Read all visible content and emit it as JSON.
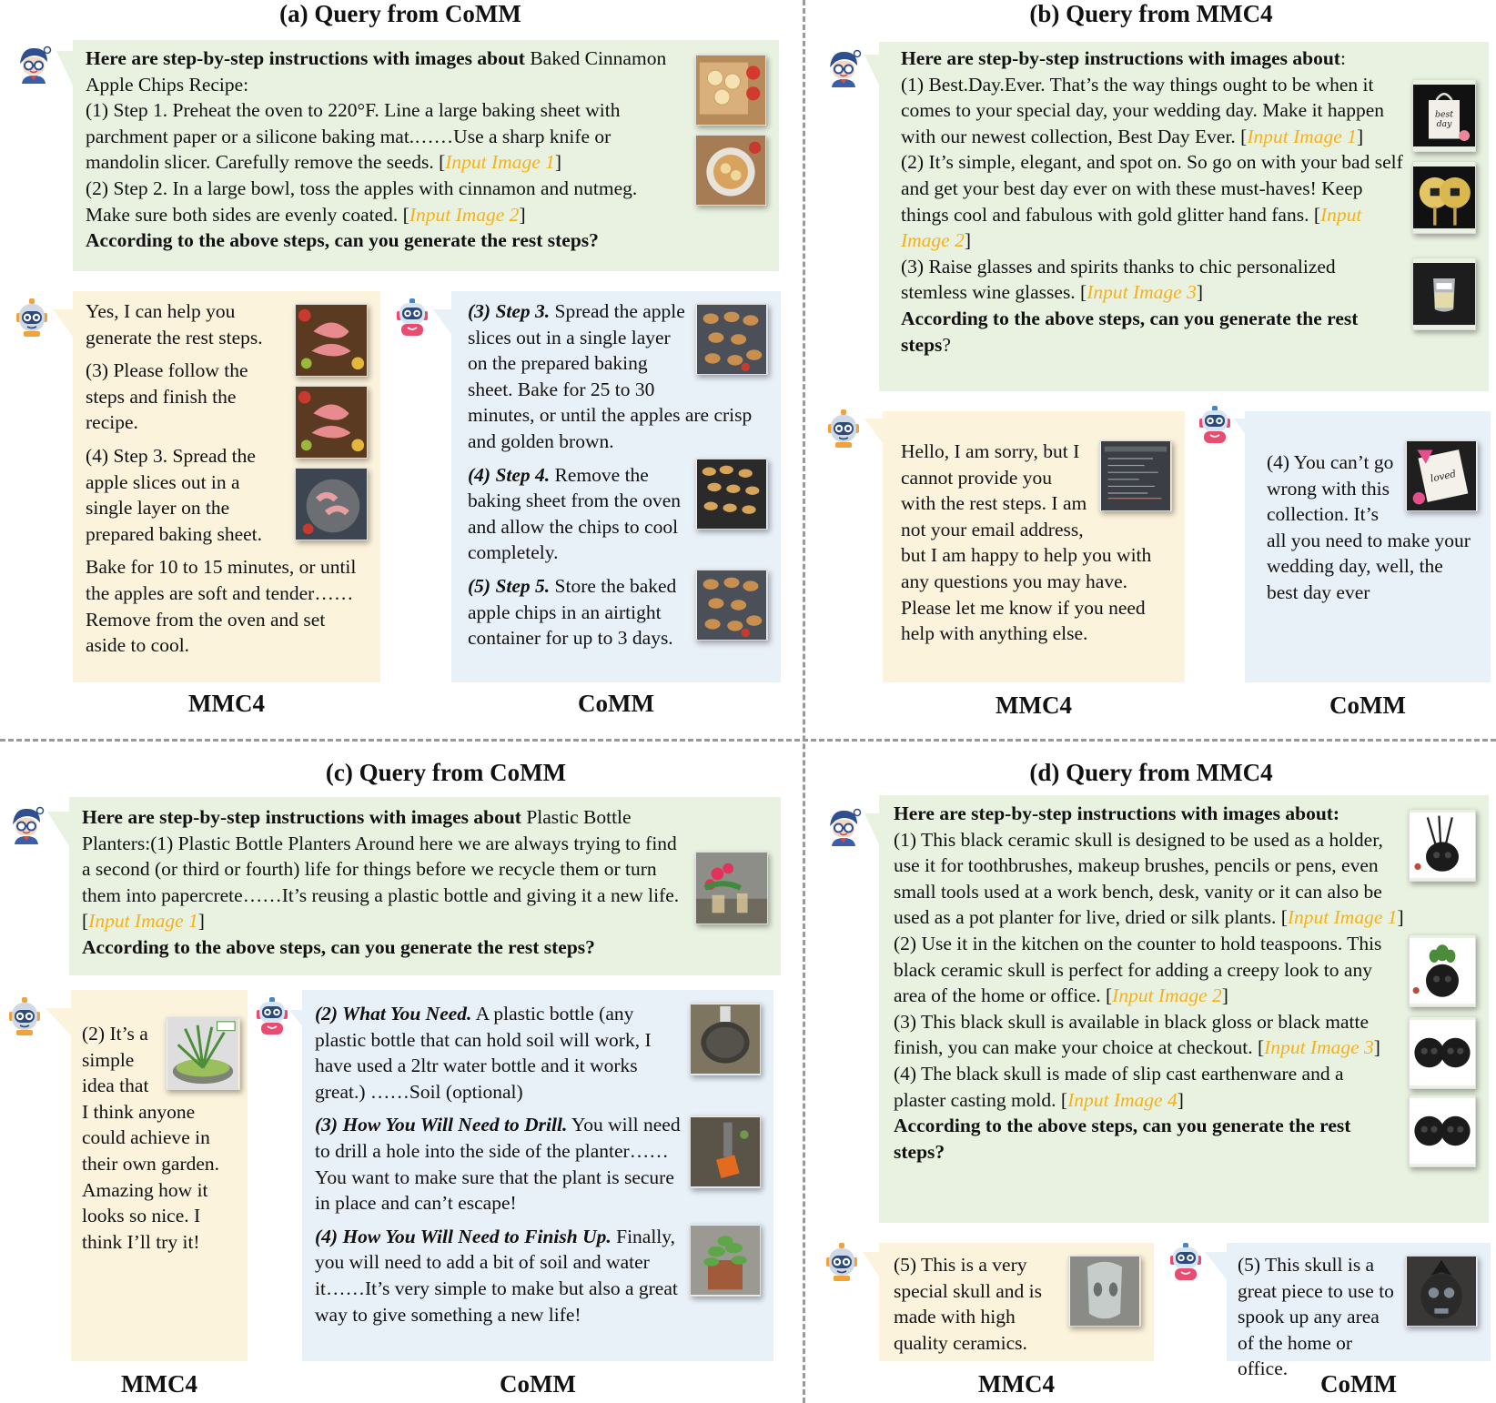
{
  "panels": {
    "a": {
      "title": "(a) Query from CoMM",
      "query": {
        "lead": "Here are step-by-step instructions with images about",
        "topic": "Baked Cinnamon Apple Chips Recipe:",
        "step1": "(1) Step 1. Preheat the oven to 220°F. Line a large baking sheet with parchment paper or a silicone baking mat.……Use a sharp knife or mandolin slicer. Carefully remove the seeds. [",
        "img1": "Input Image 1",
        "step2": "(2) Step 2. In a large bowl, toss the apples with cinnamon and nutmeg. Make sure both sides are evenly coated. [",
        "img2": "Input Image 2",
        "close": "]",
        "ask": "According to the above steps, can you generate the rest steps?"
      },
      "mmc4": {
        "p1": "Yes, I can help you generate the rest steps.",
        "p2": "(3) Please follow the steps and finish the recipe.",
        "p3": "(4) Step 3. Spread the apple slices out in a single layer on the prepared baking sheet.",
        "p4": "Bake for 10 to 15 minutes, or until the apples are soft and tender……Remove from the oven and set aside to cool."
      },
      "comm": {
        "s3h": "(3) Step 3.",
        "s3": "Spread the apple slices out in a single layer on the prepared baking sheet. Bake for 25 to 30 minutes, or until the apples are crisp and golden brown.",
        "s4h": "(4) Step 4.",
        "s4": "Remove the baking sheet from the oven and allow the chips to cool completely.",
        "s5h": "(5) Step 5.",
        "s5": "Store the baked apple chips in an airtight container for up to 3 days."
      },
      "label_mmc4": "MMC4",
      "label_comm": "CoMM"
    },
    "b": {
      "title": "(b) Query from MMC4",
      "query": {
        "lead": "Here are step-by-step instructions with images about",
        "colon": ":",
        "step1": "(1) Best.Day.Ever. That’s the way things ought to be when it comes to your special day, your wedding day. Make it happen with our newest collection, Best Day Ever. [",
        "img1": "Input Image 1",
        "step2": "(2) It’s simple, elegant, and spot on. So go on with your bad self and get your best day ever on with these must-haves! Keep things cool and fabulous with gold glitter hand fans. [",
        "img2": "Input Image 2",
        "step3": "(3) Raise glasses and spirits thanks to chic personalized stemless wine glasses. [",
        "img3": "Input Image 3",
        "close": "]",
        "ask": "According to the above steps, can you generate the rest steps",
        "q": "?"
      },
      "mmc4": "Hello, I am sorry, but I cannot provide you with the rest steps. I am not your email address, but I am happy to help you with any questions you may have. Please let me know if you need help with anything else.",
      "comm": "(4) You can’t go wrong with this collection. It’s all you need to make your wedding day, well, the best day ever",
      "label_mmc4": "MMC4",
      "label_comm": "CoMM"
    },
    "c": {
      "title": "(c) Query from CoMM",
      "query": {
        "lead": "Here are step-by-step instructions with images about",
        "body": "Plastic Bottle Planters:(1) Plastic Bottle Planters Around here we are always trying to find a second (or third or fourth) life for things before we recycle them or turn them into papercrete……It’s reusing a plastic bottle and giving it a new life. [",
        "img1": "Input Image 1",
        "close": "]",
        "ask": "According to the above steps, can you generate the rest steps?"
      },
      "mmc4": "(2) It’s a simple idea that I think anyone could achieve in their own garden. Amazing how it looks so nice. I think I’ll try it!",
      "comm": {
        "s2h": "(2) What You Need.",
        "s2": "A plastic bottle (any plastic bottle that can hold soil will work, I have used a 2ltr water bottle and it works great.) ……Soil (optional)",
        "s3h": "(3) How You Will Need to Drill.",
        "s3": "You will need to drill a hole into the side of the planter……You want to make sure that the plant is secure in place and can’t escape!",
        "s4h": "(4) How You Will Need to Finish Up.",
        "s4": "Finally, you will need to add a bit of soil and water it……It’s very simple to make but also a great way to give something a new life!"
      },
      "label_mmc4": "MMC4",
      "label_comm": "CoMM"
    },
    "d": {
      "title": "(d) Query from MMC4",
      "query": {
        "lead": "Here are step-by-step instructions with images about:",
        "step1": "(1) This black ceramic skull is designed to be used as a holder, use it for toothbrushes, makeup brushes, pencils or pens, even small tools used at a work bench, desk, vanity or it can also be used as a pot planter for live, dried or silk plants. [",
        "img1": "Input Image 1",
        "step2": "(2) Use it in the kitchen on the counter to hold teaspoons. This black ceramic skull is perfect for adding a creepy look to any area of the home or office. [",
        "img2": "Input Image 2",
        "step3": "(3) This black skull is available in black gloss or black matte finish, you can make your choice at checkout. [",
        "img3": "Input Image 3",
        "step4": "(4) The black skull is made of slip cast earthenware and a plaster casting mold. [",
        "img4": "Input Image 4",
        "close": "]",
        "ask": "According to the above steps, can you generate the rest steps?"
      },
      "mmc4": "(5) This is a very special skull and is made with high quality ceramics.",
      "comm": "(5) This skull is a great piece to use to spook up any area of the home or office.",
      "label_mmc4": "MMC4",
      "label_comm": "CoMM"
    }
  },
  "colors": {
    "query_bg": "#e9f2e1",
    "mmc4_bg": "#fcf3dc",
    "comm_bg": "#e8f0f8",
    "highlight": "#f3b11a"
  },
  "icons": {
    "user": "user-robot-avatar-icon",
    "mmc4_model": "mmc4-robot-avatar-icon",
    "comm_model": "comm-robot-avatar-icon"
  }
}
